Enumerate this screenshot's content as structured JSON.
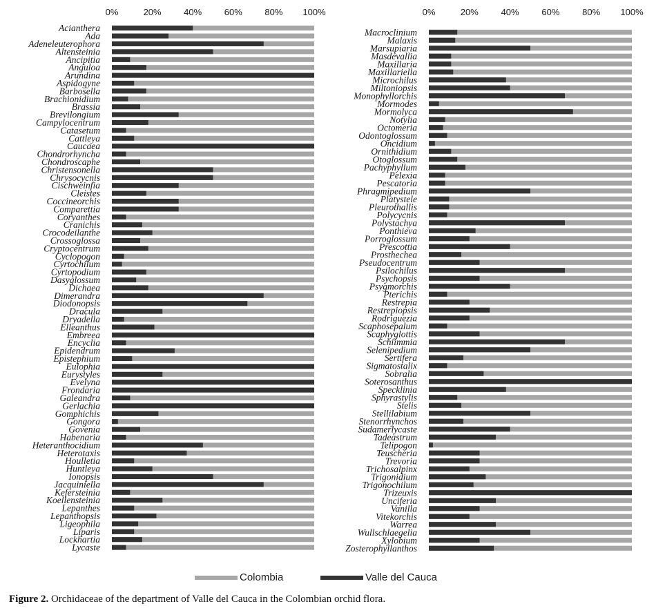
{
  "caption": {
    "label": "Figure 2.",
    "text": " Orchidaceae of the department of Valle del Cauca in the Colombian orchid flora."
  },
  "colors": {
    "colombia": "#a6a6a6",
    "valle": "#333333"
  },
  "chart_data": [
    {
      "type": "bar",
      "orientation": "horizontal",
      "stacked": true,
      "percent_scale": true,
      "x_ticks": [
        "0%",
        "20%",
        "40%",
        "60%",
        "80%",
        "100%"
      ],
      "xlim": [
        0,
        100
      ],
      "legend_position": "bottom",
      "series": [
        {
          "name": "Valle del Cauca",
          "color": "#333333"
        },
        {
          "name": "Colombia",
          "color": "#a6a6a6"
        }
      ],
      "categories": [
        "Acianthera",
        "Ada",
        "Adeneleuterophora",
        "Altensteinia",
        "Ancipitia",
        "Anguloa",
        "Arundina",
        "Aspidogyne",
        "Barbosella",
        "Brachionidium",
        "Brassia",
        "Brevilongium",
        "Campylocentrum",
        "Catasetum",
        "Cattleya",
        "Caucaea",
        "Chondrorhyncha",
        "Chondroscaphe",
        "Christensonella",
        "Chrysocycnis",
        "Cischweinfia",
        "Cleistes",
        "Coccineorchis",
        "Comparettia",
        "Coryanthes",
        "Cranichis",
        "Crocodeilanthe",
        "Crossoglossa",
        "Cryptocentrum",
        "Cyclopogon",
        "Cyrtochilum",
        "Cyrtopodium",
        "Dasyglossum",
        "Dichaea",
        "Dimerandra",
        "Diodonopsis",
        "Dracula",
        "Dryadella",
        "Elleanthus",
        "Embreea",
        "Encyclia",
        "Epidendrum",
        "Epistephium",
        "Eulophia",
        "Eurystyles",
        "Evelyna",
        "Frondaria",
        "Galeandra",
        "Gerlachia",
        "Gomphichis",
        "Gongora",
        "Govenia",
        "Habenaria",
        "Heteranthocidium",
        "Heterotaxis",
        "Houlletia",
        "Huntleya",
        "Ionopsis",
        "Jacquiniella",
        "Kefersteinia",
        "Koellensteinia",
        "Lepanthes",
        "Lepanthopsis",
        "Ligeophila",
        "Liparis",
        "Lockhartia",
        "Lycaste"
      ],
      "values_valle_pct": [
        40,
        28,
        75,
        50,
        9,
        17,
        100,
        11,
        17,
        8,
        14,
        33,
        18,
        7,
        11,
        100,
        7,
        14,
        50,
        50,
        33,
        17,
        33,
        33,
        7,
        15,
        20,
        14,
        18,
        6,
        5,
        17,
        12,
        18,
        75,
        67,
        25,
        6,
        21,
        100,
        7,
        31,
        10,
        100,
        25,
        100,
        100,
        9,
        100,
        23,
        3,
        14,
        7,
        45,
        37,
        11,
        20,
        50,
        75,
        9,
        25,
        11,
        22,
        13,
        11,
        15,
        7
      ]
    },
    {
      "type": "bar",
      "orientation": "horizontal",
      "stacked": true,
      "percent_scale": true,
      "x_ticks": [
        "0%",
        "20%",
        "40%",
        "60%",
        "80%",
        "100%"
      ],
      "xlim": [
        0,
        100
      ],
      "legend_position": "bottom",
      "series": [
        {
          "name": "Valle del Cauca",
          "color": "#333333"
        },
        {
          "name": "Colombia",
          "color": "#a6a6a6"
        }
      ],
      "categories": [
        "Macroclinium",
        "Malaxis",
        "Marsupiaria",
        "Masdevallia",
        "Maxillaria",
        "Maxillariella",
        "Microchilus",
        "Miltoniopsis",
        "Monophyllorchis",
        "Mormodes",
        "Mormolyca",
        "Notylia",
        "Octomeria",
        "Odontoglossum",
        "Oncidium",
        "Ornithidium",
        "Otoglossum",
        "Pachyphyllum",
        "Pelexia",
        "Pescatoria",
        "Phragmipedium",
        "Platystele",
        "Pleurothallis",
        "Polycycnis",
        "Polystachya",
        "Ponthieva",
        "Porroglossum",
        "Prescottia",
        "Prosthechea",
        "Pseudocentrum",
        "Psilochilus",
        "Psychopsis",
        "Psygmorchis",
        "Pterichis",
        "Restrepia",
        "Restrepiopsis",
        "Rodriguezia",
        "Scaphosepalum",
        "Scaphyglottis",
        "Schiimmia",
        "Selenipedium",
        "Sertifera",
        "Sigmatostalix",
        "Sobralia",
        "Soterosanthus",
        "Specklinia",
        "Sphyrastylis",
        "Stelis",
        "Stellilabium",
        "Stenorrhynchos",
        "Sudamerlycaste",
        "Tadeastrum",
        "Telipogon",
        "Teuscheria",
        "Trevoria",
        "Trichosalpinx",
        "Trigonidium",
        "Trigonochilum",
        "Trizeuxis",
        "Unciferia",
        "Vanilla",
        "Vitekorchis",
        "Warrea",
        "Wullschlaegelia",
        "Xylobium",
        "Zosterophyllanthos"
      ],
      "values_valle_pct": [
        14,
        13,
        50,
        11,
        11,
        12,
        38,
        40,
        67,
        5,
        71,
        8,
        7,
        9,
        3,
        11,
        14,
        18,
        8,
        8,
        50,
        10,
        10,
        9,
        67,
        23,
        20,
        40,
        16,
        25,
        67,
        25,
        40,
        9,
        20,
        30,
        20,
        9,
        25,
        67,
        50,
        17,
        9,
        27,
        100,
        38,
        14,
        16,
        50,
        17,
        40,
        33,
        2,
        25,
        25,
        20,
        28,
        22,
        100,
        33,
        25,
        20,
        33,
        50,
        25,
        32
      ]
    }
  ]
}
